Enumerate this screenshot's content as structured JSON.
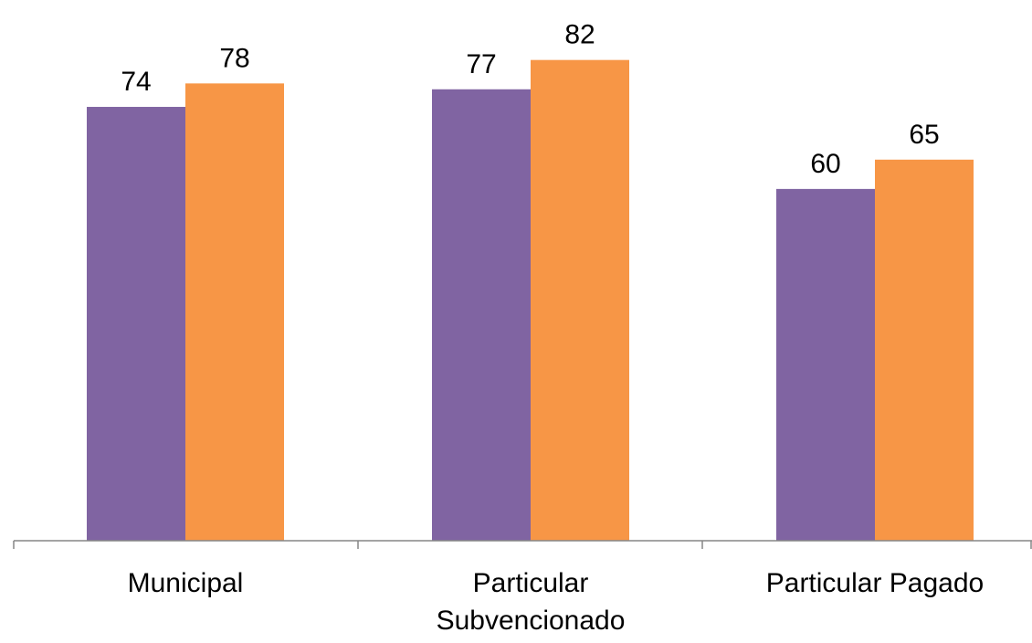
{
  "chart_data": {
    "type": "bar",
    "categories": [
      [
        "Municipal"
      ],
      [
        "Particular",
        "Subvencionado"
      ],
      [
        "Particular Pagado"
      ]
    ],
    "series": [
      {
        "values": [
          74,
          77,
          60
        ],
        "color": "#8064A2"
      },
      {
        "values": [
          78,
          82,
          65
        ],
        "color": "#F79646"
      }
    ],
    "data_labels": true,
    "grid": false,
    "legend": "none",
    "ylim": [
      0,
      86
    ]
  }
}
